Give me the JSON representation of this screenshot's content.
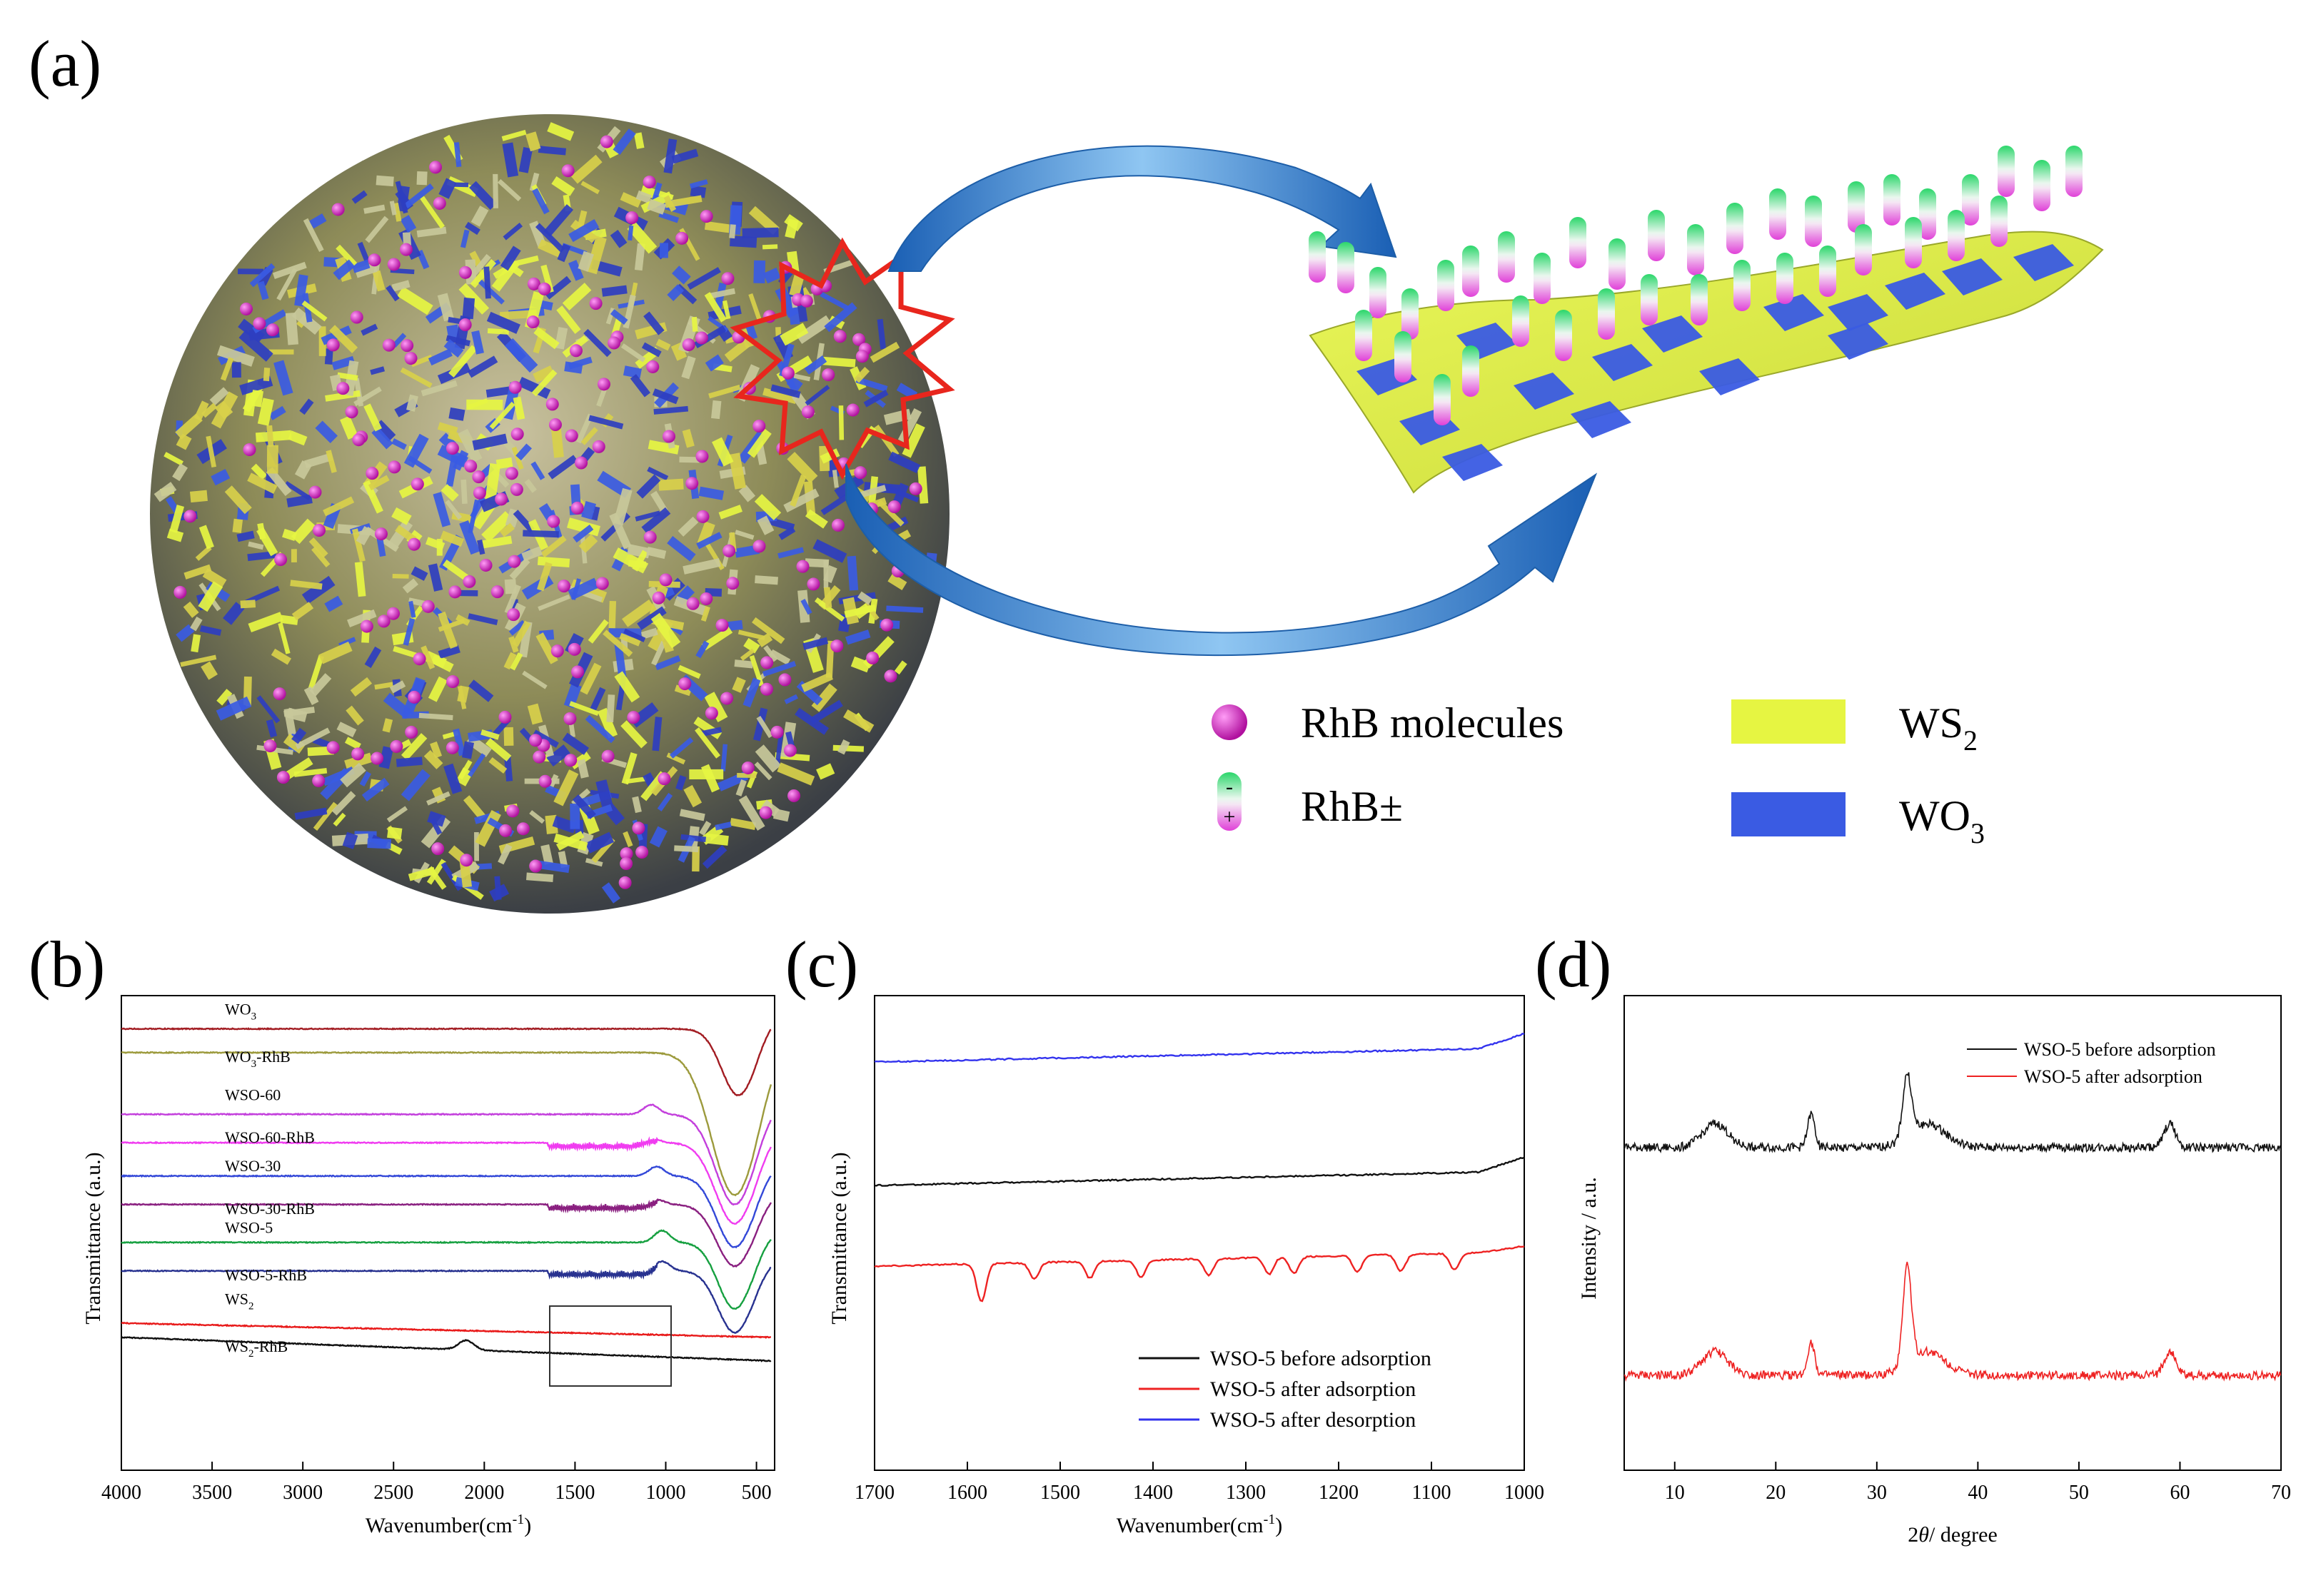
{
  "panel_labels": {
    "a": "(a)",
    "b": "(b)",
    "c": "(c)",
    "d": "(d)"
  },
  "schematic": {
    "legend": {
      "rhb_molecules": "RhB molecules",
      "rhb_charged": "RhB±",
      "ws2": "WS",
      "ws2_sub": "2",
      "wo3": "WO",
      "wo3_sub": "3"
    },
    "charge_minus": "-",
    "charge_plus": "+",
    "colors": {
      "ws2": "#e6f542",
      "wo3": "#3a5be3",
      "rhb": "#e020d8",
      "arrow": "#2f7fd0",
      "star": "#e8261d"
    }
  },
  "chart_data": [
    {
      "id": "b",
      "type": "line",
      "xlabel": "Wavenumber(cm",
      "xlabel_sup": "-1",
      "xlabel_end": ")",
      "ylabel": "Transmittance (a.u.)",
      "xlim": [
        4000,
        400
      ],
      "xticks": [
        4000,
        3500,
        3000,
        2500,
        2000,
        1500,
        1000,
        500
      ],
      "xtick_labels": [
        "4000",
        "3500",
        "3000",
        "2500",
        "2000",
        "1500",
        "1000",
        "500"
      ],
      "series": [
        {
          "name": "WO3",
          "label": "WO",
          "sub": "3",
          "color": "#a21c22",
          "offset": 0.93,
          "dip_center": 600,
          "dip_depth": 0.14,
          "dip_width": 130,
          "bump_at": 1100,
          "bump": 0.0,
          "spikes": 0,
          "edge": 0.02
        },
        {
          "name": "WO3-RhB",
          "label": "WO",
          "sub": "3",
          "label_tail": "-RhB",
          "color": "#9c9a3c",
          "offset": 0.88,
          "dip_center": 620,
          "dip_depth": 0.3,
          "dip_width": 180,
          "bump_at": 1100,
          "bump": 0.0,
          "spikes": 0,
          "edge": 0.02
        },
        {
          "name": "WSO-60",
          "label": "WSO-60",
          "color": "#c33fdc",
          "offset": 0.75,
          "dip_center": 620,
          "dip_depth": 0.19,
          "dip_width": 150,
          "bump_at": 1080,
          "bump": 0.02,
          "spikes": 0,
          "edge": 0.02
        },
        {
          "name": "WSO-60-RhB",
          "label": "WSO-60-RhB",
          "color": "#f03cf0",
          "offset": 0.69,
          "dip_center": 620,
          "dip_depth": 0.17,
          "dip_width": 150,
          "bump_at": 1080,
          "bump": 0.01,
          "spikes": 1,
          "edge": 0.02
        },
        {
          "name": "WSO-30",
          "label": "WSO-30",
          "color": "#3348d8",
          "offset": 0.62,
          "dip_center": 620,
          "dip_depth": 0.15,
          "dip_width": 140,
          "bump_at": 1050,
          "bump": 0.02,
          "spikes": 0,
          "edge": 0.02
        },
        {
          "name": "WSO-30-RhB",
          "label": "WSO-30-RhB",
          "color": "#8a2080",
          "offset": 0.56,
          "dip_center": 620,
          "dip_depth": 0.13,
          "dip_width": 140,
          "bump_at": 1050,
          "bump": 0.01,
          "spikes": 1,
          "edge": 0.02
        },
        {
          "name": "WSO-5",
          "label": "WSO-5",
          "color": "#16a040",
          "offset": 0.48,
          "dip_center": 620,
          "dip_depth": 0.14,
          "dip_width": 130,
          "bump_at": 1020,
          "bump": 0.025,
          "spikes": 0,
          "edge": 0.02
        },
        {
          "name": "WSO-5-RhB",
          "label": "WSO-5-RhB",
          "color": "#283290",
          "offset": 0.42,
          "dip_center": 620,
          "dip_depth": 0.13,
          "dip_width": 130,
          "bump_at": 1020,
          "bump": 0.02,
          "spikes": 1,
          "edge": 0.02
        },
        {
          "name": "WS2",
          "label": "WS",
          "sub": "2",
          "color": "#e81a1a",
          "offset": 0.31,
          "dip_center": 600,
          "dip_depth": 0.0,
          "dip_width": 100,
          "bump_at": 2100,
          "bump": 0.0,
          "spikes": 0,
          "edge": 0.0,
          "slope": -0.03
        },
        {
          "name": "WS2-RhB",
          "label": "WS",
          "sub": "2",
          "label_tail": "-RhB",
          "color": "#111111",
          "offset": 0.28,
          "dip_center": 600,
          "dip_depth": 0.0,
          "dip_width": 100,
          "bump_at": 2100,
          "bump": 0.02,
          "spikes": 0,
          "edge": 0.0,
          "slope": -0.05
        }
      ]
    },
    {
      "id": "c",
      "type": "line",
      "xlabel": "Wavenumber(cm",
      "xlabel_sup": "-1",
      "xlabel_end": ")",
      "ylabel": "Transmittance (a.u.)",
      "xlim": [
        1700,
        1000
      ],
      "xticks": [
        1700,
        1600,
        1500,
        1400,
        1300,
        1200,
        1100,
        1000
      ],
      "xtick_labels": [
        "1700",
        "1600",
        "1500",
        "1400",
        "1300",
        "1200",
        "1100",
        "1000"
      ],
      "legend_position": "bottom-right",
      "series": [
        {
          "name": "WSO-5 before adsorption",
          "color": "#111111",
          "offset": 0.6
        },
        {
          "name": "WSO-5 after adsorption",
          "color": "#ee2222",
          "offset": 0.43,
          "peaks": [
            1585,
            1528,
            1468,
            1413,
            1340,
            1275,
            1248,
            1180,
            1133,
            1075
          ]
        },
        {
          "name": "WSO-5 after desorption",
          "color": "#3333ee",
          "offset": 0.86
        }
      ]
    },
    {
      "id": "d",
      "type": "line",
      "xlabel": "2",
      "xlabel_theta": "θ",
      "xlabel_end": "/ degree",
      "ylabel": "Intensity / a.u.",
      "xlim": [
        5,
        70
      ],
      "xticks": [
        10,
        20,
        30,
        40,
        50,
        60,
        70
      ],
      "xtick_labels": [
        "10",
        "20",
        "30",
        "40",
        "50",
        "60",
        "70"
      ],
      "legend_position": "top-right",
      "peaks": [
        14,
        23.5,
        33,
        59
      ],
      "series": [
        {
          "name": "WSO-5 before adsorption",
          "color": "#111111",
          "offset": 0.68
        },
        {
          "name": "WSO-5 after adsorption",
          "color": "#ee2222",
          "offset": 0.2
        }
      ]
    }
  ]
}
